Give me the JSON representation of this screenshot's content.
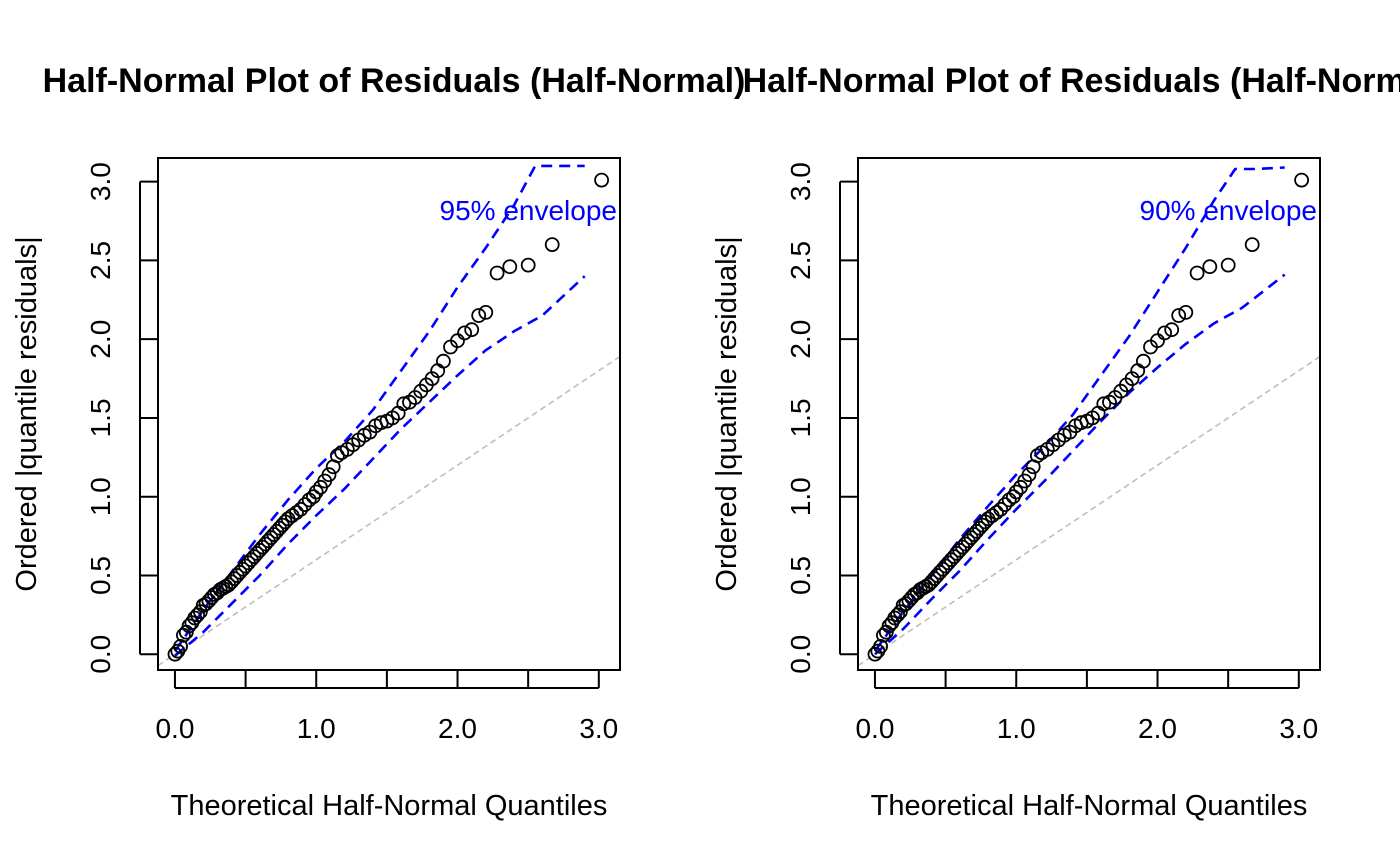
{
  "chart_data": [
    {
      "type": "scatter",
      "title": "Half-Normal Plot of Residuals (Half-Normal)",
      "xlabel": "Theoretical Half-Normal Quantiles",
      "ylabel": "Ordered |quantile residuals|",
      "annotation": "95% envelope",
      "xlim": [
        -0.12,
        3.15
      ],
      "ylim": [
        -0.1,
        3.15
      ],
      "x_ticks": [
        0.0,
        0.5,
        1.0,
        1.5,
        2.0,
        2.5,
        3.0
      ],
      "x_tick_labels": [
        "0.0",
        "",
        "1.0",
        "",
        "2.0",
        "",
        "3.0"
      ],
      "y_ticks": [
        0.0,
        0.5,
        1.0,
        1.5,
        2.0,
        2.5,
        3.0
      ],
      "y_tick_labels": [
        "0.0",
        "0.5",
        "1.0",
        "1.5",
        "2.0",
        "2.5",
        "3.0"
      ],
      "colors": {
        "points": "#000000",
        "envelope": "#0000ff",
        "reference": "#bebebe"
      },
      "reference_line": {
        "slope": 0.6,
        "intercept": 0.0
      },
      "points": {
        "x": [
          0.0,
          0.02,
          0.04,
          0.06,
          0.08,
          0.1,
          0.12,
          0.14,
          0.16,
          0.18,
          0.2,
          0.22,
          0.24,
          0.26,
          0.28,
          0.3,
          0.32,
          0.34,
          0.36,
          0.38,
          0.4,
          0.42,
          0.44,
          0.46,
          0.48,
          0.5,
          0.52,
          0.54,
          0.56,
          0.58,
          0.6,
          0.62,
          0.64,
          0.66,
          0.68,
          0.7,
          0.72,
          0.74,
          0.76,
          0.78,
          0.8,
          0.83,
          0.86,
          0.89,
          0.92,
          0.95,
          0.98,
          1.0,
          1.03,
          1.06,
          1.09,
          1.12,
          1.15,
          1.18,
          1.22,
          1.26,
          1.3,
          1.34,
          1.38,
          1.42,
          1.46,
          1.5,
          1.54,
          1.58,
          1.62,
          1.66,
          1.7,
          1.74,
          1.78,
          1.82,
          1.86,
          1.9,
          1.95,
          2.0,
          2.05,
          2.1,
          2.15,
          2.2,
          2.28,
          2.37,
          2.5,
          2.67,
          3.02
        ],
        "y": [
          0.0,
          0.02,
          0.05,
          0.12,
          0.14,
          0.18,
          0.2,
          0.23,
          0.25,
          0.27,
          0.31,
          0.32,
          0.34,
          0.36,
          0.38,
          0.39,
          0.41,
          0.42,
          0.43,
          0.44,
          0.46,
          0.48,
          0.5,
          0.52,
          0.54,
          0.56,
          0.58,
          0.6,
          0.62,
          0.64,
          0.66,
          0.68,
          0.7,
          0.72,
          0.74,
          0.76,
          0.78,
          0.8,
          0.82,
          0.84,
          0.86,
          0.88,
          0.9,
          0.92,
          0.95,
          0.98,
          1.0,
          1.03,
          1.06,
          1.1,
          1.14,
          1.19,
          1.26,
          1.28,
          1.3,
          1.33,
          1.36,
          1.39,
          1.41,
          1.45,
          1.47,
          1.48,
          1.5,
          1.53,
          1.59,
          1.6,
          1.63,
          1.67,
          1.71,
          1.75,
          1.8,
          1.86,
          1.95,
          1.99,
          2.04,
          2.06,
          2.15,
          2.17,
          2.42,
          2.46,
          2.47,
          2.6,
          3.01
        ]
      },
      "envelope_upper": {
        "x": [
          0.0,
          0.2,
          0.4,
          0.6,
          0.8,
          1.0,
          1.2,
          1.4,
          1.6,
          1.8,
          2.0,
          2.2,
          2.4,
          2.55,
          2.7,
          2.9
        ],
        "y": [
          0.02,
          0.28,
          0.52,
          0.76,
          0.98,
          1.18,
          1.35,
          1.55,
          1.8,
          2.05,
          2.33,
          2.58,
          2.85,
          3.1,
          3.1,
          3.1
        ]
      },
      "envelope_lower": {
        "x": [
          0.0,
          0.2,
          0.4,
          0.6,
          0.8,
          1.0,
          1.2,
          1.4,
          1.6,
          1.8,
          2.0,
          2.2,
          2.4,
          2.6,
          2.9
        ],
        "y": [
          -0.01,
          0.14,
          0.32,
          0.5,
          0.7,
          0.88,
          1.05,
          1.24,
          1.43,
          1.6,
          1.77,
          1.93,
          2.05,
          2.15,
          2.4
        ]
      }
    },
    {
      "type": "scatter",
      "title": "Half-Normal Plot of Residuals (Half-Normal)",
      "xlabel": "Theoretical Half-Normal Quantiles",
      "ylabel": "Ordered |quantile residuals|",
      "annotation": "90% envelope",
      "xlim": [
        -0.12,
        3.15
      ],
      "ylim": [
        -0.1,
        3.15
      ],
      "x_ticks": [
        0.0,
        0.5,
        1.0,
        1.5,
        2.0,
        2.5,
        3.0
      ],
      "x_tick_labels": [
        "0.0",
        "",
        "1.0",
        "",
        "2.0",
        "",
        "3.0"
      ],
      "y_ticks": [
        0.0,
        0.5,
        1.0,
        1.5,
        2.0,
        2.5,
        3.0
      ],
      "y_tick_labels": [
        "0.0",
        "0.5",
        "1.0",
        "1.5",
        "2.0",
        "2.5",
        "3.0"
      ],
      "colors": {
        "points": "#000000",
        "envelope": "#0000ff",
        "reference": "#bebebe"
      },
      "reference_line": {
        "slope": 0.6,
        "intercept": 0.0
      },
      "points": {
        "x": [
          0.0,
          0.02,
          0.04,
          0.06,
          0.08,
          0.1,
          0.12,
          0.14,
          0.16,
          0.18,
          0.2,
          0.22,
          0.24,
          0.26,
          0.28,
          0.3,
          0.32,
          0.34,
          0.36,
          0.38,
          0.4,
          0.42,
          0.44,
          0.46,
          0.48,
          0.5,
          0.52,
          0.54,
          0.56,
          0.58,
          0.6,
          0.62,
          0.64,
          0.66,
          0.68,
          0.7,
          0.72,
          0.74,
          0.76,
          0.78,
          0.8,
          0.83,
          0.86,
          0.89,
          0.92,
          0.95,
          0.98,
          1.0,
          1.03,
          1.06,
          1.09,
          1.12,
          1.15,
          1.18,
          1.22,
          1.26,
          1.3,
          1.34,
          1.38,
          1.42,
          1.46,
          1.5,
          1.54,
          1.58,
          1.62,
          1.66,
          1.7,
          1.74,
          1.78,
          1.82,
          1.86,
          1.9,
          1.95,
          2.0,
          2.05,
          2.1,
          2.15,
          2.2,
          2.28,
          2.37,
          2.5,
          2.67,
          3.02
        ],
        "y": [
          0.0,
          0.02,
          0.05,
          0.12,
          0.14,
          0.18,
          0.2,
          0.23,
          0.25,
          0.27,
          0.31,
          0.32,
          0.34,
          0.36,
          0.38,
          0.39,
          0.41,
          0.42,
          0.43,
          0.44,
          0.46,
          0.48,
          0.5,
          0.52,
          0.54,
          0.56,
          0.58,
          0.6,
          0.62,
          0.64,
          0.66,
          0.68,
          0.7,
          0.72,
          0.74,
          0.76,
          0.78,
          0.8,
          0.82,
          0.84,
          0.86,
          0.88,
          0.9,
          0.92,
          0.95,
          0.98,
          1.0,
          1.03,
          1.06,
          1.1,
          1.14,
          1.19,
          1.26,
          1.28,
          1.3,
          1.33,
          1.36,
          1.39,
          1.41,
          1.45,
          1.47,
          1.48,
          1.5,
          1.53,
          1.59,
          1.6,
          1.63,
          1.67,
          1.71,
          1.75,
          1.8,
          1.86,
          1.95,
          1.99,
          2.04,
          2.06,
          2.15,
          2.17,
          2.42,
          2.46,
          2.47,
          2.6,
          3.01
        ]
      },
      "envelope_upper": {
        "x": [
          0.0,
          0.2,
          0.4,
          0.6,
          0.8,
          1.0,
          1.2,
          1.4,
          1.6,
          1.8,
          2.0,
          2.2,
          2.4,
          2.55,
          2.7,
          2.9
        ],
        "y": [
          0.02,
          0.27,
          0.5,
          0.73,
          0.94,
          1.14,
          1.32,
          1.52,
          1.77,
          2.02,
          2.3,
          2.58,
          2.88,
          3.08,
          3.08,
          3.09
        ]
      },
      "envelope_lower": {
        "x": [
          0.0,
          0.2,
          0.4,
          0.6,
          0.8,
          1.0,
          1.2,
          1.4,
          1.6,
          1.8,
          2.0,
          2.2,
          2.4,
          2.6,
          2.9
        ],
        "y": [
          0.0,
          0.16,
          0.35,
          0.53,
          0.73,
          0.92,
          1.1,
          1.29,
          1.48,
          1.66,
          1.82,
          1.97,
          2.1,
          2.2,
          2.41
        ]
      }
    }
  ]
}
